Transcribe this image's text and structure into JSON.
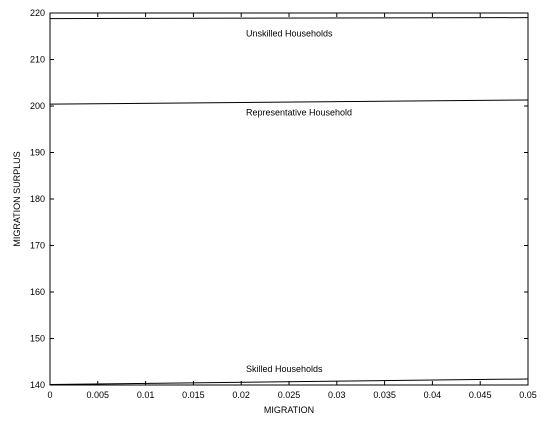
{
  "chart_data": {
    "type": "line",
    "title": "",
    "xlabel": "MIGRATION",
    "ylabel": "MIGRATION SURPLUS",
    "xlim": [
      0,
      0.05
    ],
    "ylim": [
      140,
      220
    ],
    "grid": false,
    "x_ticks": [
      0,
      0.005,
      0.01,
      0.015,
      0.02,
      0.025,
      0.03,
      0.035,
      0.04,
      0.045,
      0.05
    ],
    "x_tick_labels": [
      "0",
      "0.005",
      "0.01",
      "0.015",
      "0.02",
      "0.025",
      "0.03",
      "0.035",
      "0.04",
      "0.045",
      "0.05"
    ],
    "y_ticks": [
      140,
      150,
      160,
      170,
      180,
      190,
      200,
      210,
      220
    ],
    "y_tick_labels": [
      "140",
      "150",
      "160",
      "170",
      "180",
      "190",
      "200",
      "210",
      "220"
    ],
    "x": [
      0,
      0.05
    ],
    "series": [
      {
        "values": [
          218.8,
          219.0
        ],
        "color": "#000000"
      },
      {
        "values": [
          200.4,
          201.3
        ],
        "color": "#000000"
      },
      {
        "values": [
          140.1,
          141.3
        ],
        "color": "#000000"
      }
    ],
    "annotations": [
      {
        "text": "Unskilled Households",
        "x": 0.0205,
        "y": 215
      },
      {
        "text": "Representative Household",
        "x": 0.0205,
        "y": 198
      },
      {
        "text": "Skilled Households",
        "x": 0.0205,
        "y": 142.8
      }
    ]
  }
}
